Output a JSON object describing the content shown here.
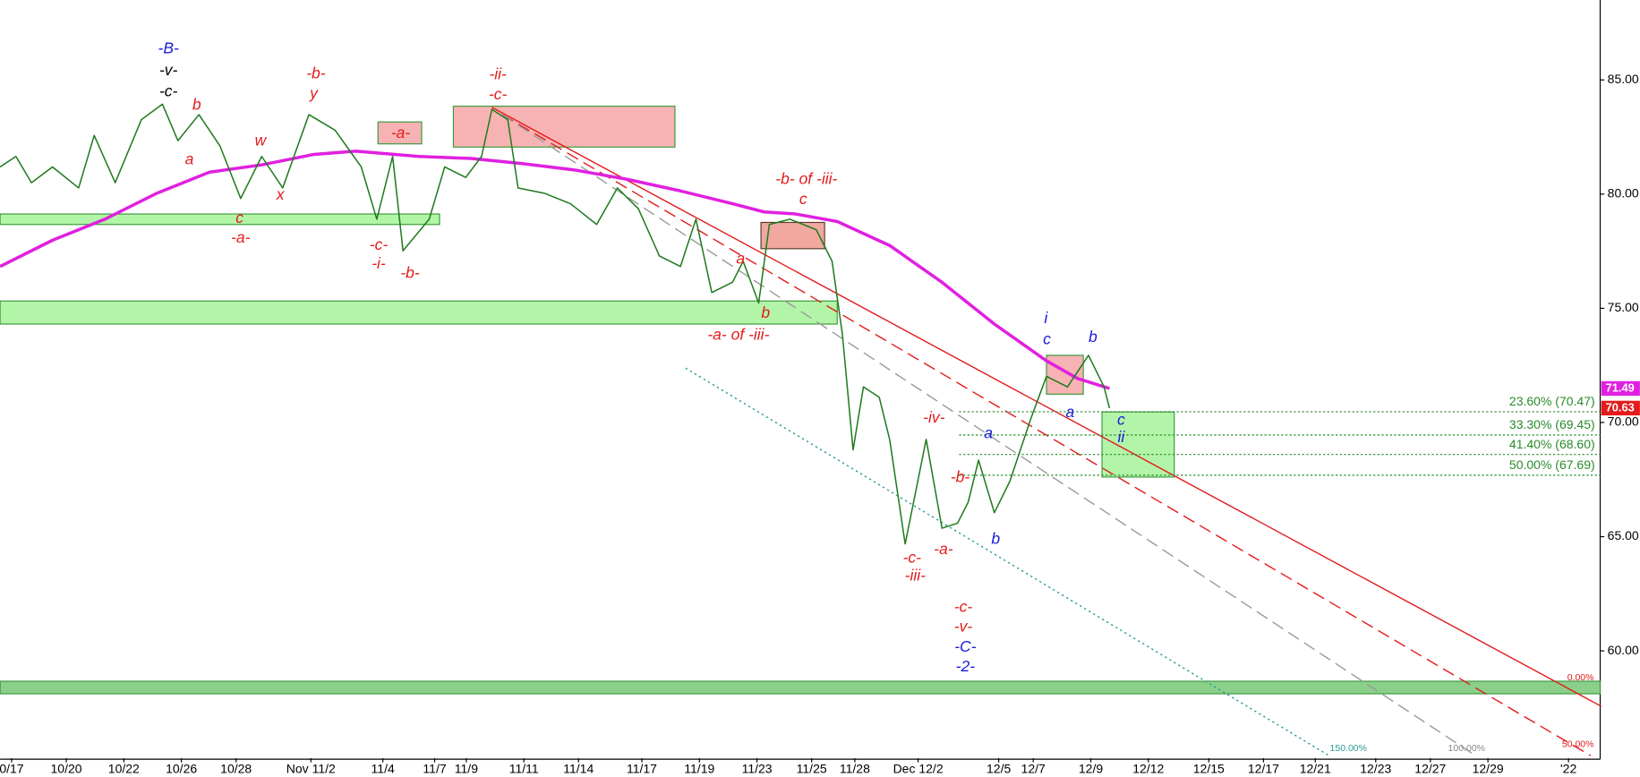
{
  "chart_data": {
    "type": "line",
    "xlim": [
      0,
      55.6
    ],
    "ylim": [
      55.3,
      88.5
    ],
    "xticks": [
      {
        "value": 0.4,
        "label": "0/17"
      },
      {
        "value": 2.3,
        "label": "10/20"
      },
      {
        "value": 4.3,
        "label": "10/22"
      },
      {
        "value": 6.3,
        "label": "10/26"
      },
      {
        "value": 8.2,
        "label": "10/28"
      },
      {
        "value": 10.8,
        "label": "Nov 11/2"
      },
      {
        "value": 13.3,
        "label": "11/4"
      },
      {
        "value": 15.1,
        "label": "11/7"
      },
      {
        "value": 16.2,
        "label": "11/9"
      },
      {
        "value": 18.2,
        "label": "11/11"
      },
      {
        "value": 20.1,
        "label": "11/14"
      },
      {
        "value": 22.3,
        "label": "11/17"
      },
      {
        "value": 24.3,
        "label": "11/19"
      },
      {
        "value": 26.3,
        "label": "11/23"
      },
      {
        "value": 28.2,
        "label": "11/25"
      },
      {
        "value": 29.7,
        "label": "11/28"
      },
      {
        "value": 31.9,
        "label": "Dec 12/2"
      },
      {
        "value": 34.7,
        "label": "12/5"
      },
      {
        "value": 35.9,
        "label": "12/7"
      },
      {
        "value": 37.9,
        "label": "12/9"
      },
      {
        "value": 39.9,
        "label": "12/12"
      },
      {
        "value": 42.0,
        "label": "12/15"
      },
      {
        "value": 43.9,
        "label": "12/17"
      },
      {
        "value": 45.7,
        "label": "12/21"
      },
      {
        "value": 47.8,
        "label": "12/23"
      },
      {
        "value": 49.7,
        "label": "12/27"
      },
      {
        "value": 51.7,
        "label": "12/29"
      },
      {
        "value": 54.5,
        "label": "'22"
      }
    ],
    "yticks": [
      {
        "value": 60,
        "label": "60.00"
      },
      {
        "value": 65,
        "label": "65.00"
      },
      {
        "value": 70,
        "label": "70.00"
      },
      {
        "value": 75,
        "label": "75.00"
      },
      {
        "value": 80,
        "label": "80.00"
      },
      {
        "value": 85,
        "label": "85.00"
      }
    ],
    "series": [
      {
        "color": "#1f7a1f",
        "x": [
          0,
          0.55,
          1.09,
          1.82,
          2.73,
          3.27,
          4.0,
          4.91,
          5.64,
          6.18,
          6.91,
          7.64,
          8.36,
          9.09,
          9.82,
          10.73,
          11.64,
          12.55,
          13.09,
          13.64,
          14.0,
          14.91,
          15.45,
          16.18,
          16.73,
          17.09,
          17.64,
          18.0,
          18.91,
          19.82,
          20.73,
          21.45,
          22.18,
          22.91,
          23.64,
          24.18,
          24.73,
          25.45,
          25.82,
          26.36,
          26.73,
          27.45,
          28.36,
          28.91,
          29.27,
          29.64,
          30.0,
          30.55,
          30.91,
          31.45,
          32.18,
          32.73,
          33.27,
          33.64,
          34.0,
          34.55,
          35.09,
          35.82,
          36.36,
          37.09,
          37.82,
          38.36,
          38.55
        ],
        "values": [
          81.19,
          81.65,
          80.5,
          81.19,
          80.27,
          82.57,
          80.5,
          83.26,
          83.94,
          82.34,
          83.48,
          82.11,
          79.81,
          81.65,
          80.27,
          83.48,
          82.8,
          81.19,
          78.9,
          81.65,
          77.52,
          78.9,
          81.19,
          80.73,
          81.65,
          83.71,
          83.26,
          80.27,
          80.04,
          79.58,
          78.67,
          80.27,
          79.36,
          77.29,
          76.83,
          78.9,
          75.69,
          76.14,
          77.06,
          75.23,
          78.67,
          78.9,
          78.44,
          77.06,
          73.85,
          68.8,
          71.56,
          71.1,
          69.26,
          64.68,
          69.26,
          65.37,
          65.59,
          66.51,
          68.35,
          66.05,
          67.43,
          70.18,
          72.02,
          71.56,
          72.94,
          71.56,
          70.63
        ],
        "tag_color": "#e31b1b"
      },
      {
        "color": "#e020e0",
        "x": [
          0,
          1.82,
          3.64,
          5.45,
          7.27,
          9.09,
          10.91,
          12.36,
          14.55,
          16.36,
          18.18,
          20.0,
          21.82,
          23.64,
          25.45,
          26.55,
          27.64,
          29.09,
          30.91,
          32.73,
          34.55,
          36.36,
          37.45,
          38.55
        ],
        "values": [
          76.83,
          77.98,
          78.9,
          80.04,
          80.96,
          81.28,
          81.74,
          81.88,
          81.65,
          81.56,
          81.33,
          81.05,
          80.64,
          80.14,
          79.58,
          79.22,
          79.13,
          78.8,
          77.75,
          76.14,
          74.31,
          72.7,
          71.92,
          71.49
        ],
        "tag_color": "#e020e0"
      }
    ],
    "zones": [
      {
        "x": [
          0,
          15.27
        ],
        "y": [
          78.67,
          79.13
        ],
        "color": "#b3f5a8"
      },
      {
        "x": [
          0,
          29.09
        ],
        "y": [
          74.31,
          75.32
        ],
        "color": "#b3f5a8"
      },
      {
        "x": [
          0,
          55.6
        ],
        "y": [
          58.12,
          58.67
        ],
        "color": "#8bcf8b"
      },
      {
        "x": [
          13.13,
          14.65
        ],
        "y": [
          82.2,
          83.16
        ],
        "color": "#f7b3b3"
      },
      {
        "x": [
          15.75,
          23.45
        ],
        "y": [
          82.06,
          83.85
        ],
        "color": "#f7b3b3"
      },
      {
        "x": [
          26.44,
          28.65
        ],
        "y": [
          77.61,
          78.76
        ],
        "color": "#f0a8a0"
      },
      {
        "x": [
          36.36,
          37.64
        ],
        "y": [
          71.24,
          72.94
        ],
        "color": "#f7b3b3"
      },
      {
        "x": [
          38.29,
          40.8
        ],
        "y": [
          67.61,
          70.46
        ],
        "color": "#b3f5a8"
      }
    ],
    "lines": [
      {
        "x": [
          17.09,
          55.64
        ],
        "y": [
          83.8,
          57.57
        ],
        "color": "#e31b1b",
        "dash": "none"
      },
      {
        "x": [
          17.45,
          55.27
        ],
        "y": [
          83.48,
          55.41
        ],
        "color": "#e31b1b",
        "dash": "12 6"
      },
      {
        "x": [
          17.45,
          51.27
        ],
        "y": [
          83.48,
          55.41
        ],
        "color": "#999999",
        "dash": "12 6"
      },
      {
        "x": [
          23.82,
          46.18
        ],
        "y": [
          72.38,
          55.41
        ],
        "color": "#2a9a9a",
        "dash": "2 3"
      }
    ],
    "fib_levels": [
      {
        "value": 70.47,
        "label": "23.60% (70.47)"
      },
      {
        "value": 69.45,
        "label": "33.30% (69.45)"
      },
      {
        "value": 68.6,
        "label": "41.40% (68.60)"
      },
      {
        "value": 67.69,
        "label": "50.00% (67.69)"
      }
    ],
    "channel_labels": [
      "0.00%",
      "50.00%",
      "100.00%",
      "150.00%"
    ],
    "annotations": [
      {
        "text": "-B-",
        "color": "#1a1adb"
      },
      {
        "text": "-v-",
        "color": "#000000"
      },
      {
        "text": "-c-",
        "color": "#000000"
      },
      {
        "text": "b",
        "color": "#e31b1b"
      },
      {
        "text": "a",
        "color": "#e31b1b"
      },
      {
        "text": "w",
        "color": "#e31b1b"
      },
      {
        "text": "x",
        "color": "#e31b1b"
      },
      {
        "text": "-b-",
        "color": "#e31b1b"
      },
      {
        "text": "y",
        "color": "#e31b1b"
      },
      {
        "text": "c",
        "color": "#e31b1b"
      },
      {
        "text": "-a-",
        "color": "#e31b1b"
      },
      {
        "text": "-a-",
        "color": "#e31b1b"
      },
      {
        "text": "-c-",
        "color": "#e31b1b"
      },
      {
        "text": "-i-",
        "color": "#e31b1b"
      },
      {
        "text": "-b-",
        "color": "#e31b1b"
      },
      {
        "text": "-ii-",
        "color": "#e31b1b"
      },
      {
        "text": "-c-",
        "color": "#e31b1b"
      },
      {
        "text": "-b- of -iii-",
        "color": "#e31b1b"
      },
      {
        "text": "c",
        "color": "#e31b1b"
      },
      {
        "text": "a",
        "color": "#e31b1b"
      },
      {
        "text": "b",
        "color": "#e31b1b"
      },
      {
        "text": "-a- of -iii-",
        "color": "#e31b1b"
      },
      {
        "text": "-iv-",
        "color": "#e31b1b"
      },
      {
        "text": "-b-",
        "color": "#e31b1b"
      },
      {
        "text": "-c-",
        "color": "#e31b1b"
      },
      {
        "text": "-iii-",
        "color": "#e31b1b"
      },
      {
        "text": "-a-",
        "color": "#e31b1b"
      },
      {
        "text": "-c-",
        "color": "#e31b1b"
      },
      {
        "text": "-v-",
        "color": "#e31b1b"
      },
      {
        "text": "-C-",
        "color": "#1a1adb"
      },
      {
        "text": "-2-",
        "color": "#1a1adb"
      },
      {
        "text": "a",
        "color": "#1a1adb"
      },
      {
        "text": "b",
        "color": "#1a1adb"
      },
      {
        "text": "i",
        "color": "#1a1adb"
      },
      {
        "text": "c",
        "color": "#1a1adb"
      },
      {
        "text": "b",
        "color": "#1a1adb"
      },
      {
        "text": "a",
        "color": "#1a1adb"
      },
      {
        "text": "c",
        "color": "#1a1adb"
      },
      {
        "text": "ii",
        "color": "#1a1adb"
      }
    ]
  }
}
